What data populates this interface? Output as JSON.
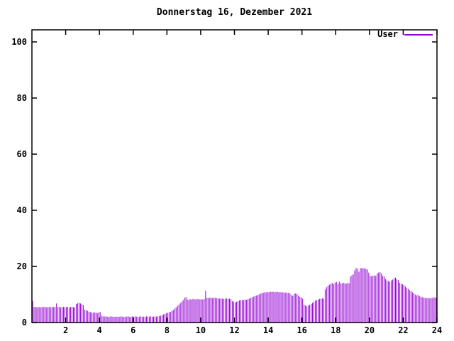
{
  "chart_data": {
    "type": "bar",
    "title": "Donnerstag 16, Dezember 2021",
    "xlabel": "",
    "ylabel": "",
    "xlim": [
      0,
      24
    ],
    "ylim": [
      0,
      100
    ],
    "xticks": [
      2,
      4,
      6,
      8,
      10,
      12,
      14,
      16,
      18,
      20,
      22,
      24
    ],
    "yticks": [
      0,
      20,
      40,
      60,
      80,
      100
    ],
    "grid": false,
    "legend_position": "top-right",
    "legend_label": "User",
    "interval_minutes": 5,
    "series": [
      {
        "name": "User",
        "color": "#9400d3",
        "x_start_hour": 0,
        "x_step_hours": 0.0833333,
        "values": [
          7.7,
          5.5,
          5.6,
          5.4,
          5.6,
          5.5,
          5.4,
          5.6,
          5.5,
          5.6,
          5.4,
          5.5,
          5.6,
          5.4,
          5.5,
          5.6,
          5.5,
          6.8,
          5.5,
          5.6,
          5.4,
          5.5,
          5.6,
          5.4,
          5.5,
          5.6,
          5.4,
          5.5,
          5.6,
          5.5,
          5.4,
          6.6,
          6.9,
          7.1,
          6.8,
          6.5,
          6.3,
          4.6,
          4.4,
          4.2,
          3.9,
          3.7,
          3.6,
          3.5,
          3.6,
          3.5,
          3.4,
          3.5,
          3.8,
          2.4,
          2.2,
          2.1,
          2.2,
          2.1,
          2.0,
          2.1,
          2.2,
          2.1,
          2.0,
          2.1,
          2.1,
          2.0,
          2.1,
          2.2,
          2.1,
          2.0,
          2.1,
          2.1,
          2.2,
          2.0,
          2.1,
          2.2,
          2.1,
          2.2,
          2.1,
          2.0,
          2.1,
          2.2,
          2.1,
          2.1,
          2.0,
          2.2,
          2.1,
          2.1,
          2.2,
          2.1,
          2.1,
          2.2,
          2.1,
          2.2,
          2.3,
          2.4,
          2.6,
          2.9,
          3.1,
          3.3,
          3.5,
          3.6,
          3.8,
          4.1,
          4.5,
          5.0,
          5.4,
          5.9,
          6.4,
          6.9,
          7.4,
          8.0,
          8.8,
          9.1,
          8.2,
          8.0,
          8.3,
          8.2,
          8.4,
          8.3,
          8.2,
          8.4,
          8.3,
          8.2,
          8.3,
          8.2,
          8.4,
          11.3,
          8.8,
          8.7,
          8.9,
          8.8,
          8.7,
          8.9,
          8.8,
          8.7,
          8.6,
          8.5,
          8.6,
          8.5,
          8.4,
          8.5,
          8.6,
          8.4,
          8.5,
          8.3,
          7.6,
          7.4,
          7.2,
          7.4,
          7.6,
          7.9,
          8.0,
          8.1,
          8.0,
          8.2,
          8.1,
          8.3,
          8.5,
          8.8,
          9.0,
          9.2,
          9.4,
          9.6,
          9.8,
          10.0,
          10.3,
          10.5,
          10.6,
          10.8,
          10.7,
          10.9,
          10.8,
          11.0,
          10.9,
          11.0,
          10.8,
          10.9,
          11.0,
          10.8,
          10.9,
          10.7,
          10.8,
          10.6,
          10.7,
          10.5,
          10.6,
          10.4,
          9.8,
          9.5,
          10.2,
          10.4,
          10.1,
          9.6,
          9.2,
          9.0,
          8.5,
          6.4,
          6.1,
          5.8,
          6.0,
          6.3,
          6.6,
          7.0,
          7.4,
          7.8,
          8.0,
          8.2,
          8.4,
          8.5,
          8.6,
          8.5,
          11.8,
          12.6,
          13.1,
          13.5,
          13.8,
          14.1,
          13.7,
          14.2,
          14.5,
          13.8,
          14.6,
          14.0,
          13.9,
          14.2,
          14.0,
          13.8,
          14.1,
          14.0,
          16.4,
          16.8,
          17.2,
          18.6,
          19.4,
          19.2,
          18.1,
          19.3,
          19.5,
          19.2,
          19.4,
          19.1,
          18.9,
          17.8,
          16.6,
          16.5,
          16.7,
          16.8,
          16.6,
          17.4,
          17.8,
          18.0,
          17.5,
          16.6,
          16.4,
          15.5,
          15.0,
          14.7,
          14.5,
          15.0,
          15.3,
          15.8,
          16.0,
          15.4,
          15.1,
          14.2,
          13.8,
          13.6,
          13.4,
          12.8,
          12.4,
          12.0,
          11.6,
          11.2,
          10.8,
          10.4,
          10.0,
          9.7,
          9.9,
          9.4,
          9.2,
          9.0,
          8.9,
          8.8,
          8.7,
          8.8,
          8.6,
          8.7,
          8.8,
          8.9,
          9.0,
          8.8
        ]
      }
    ]
  },
  "colors": {
    "background": "#ffffff",
    "axis": "#000000",
    "text": "#000000",
    "accent": "#9400d3"
  }
}
